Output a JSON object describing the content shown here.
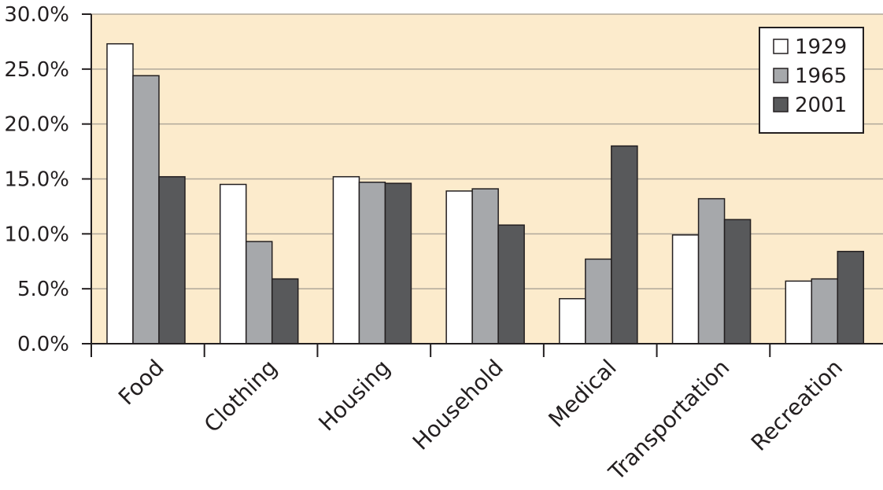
{
  "chart_data": {
    "type": "bar",
    "title": "",
    "xlabel": "",
    "ylabel": "",
    "ylim": [
      0,
      30
    ],
    "yticks": [
      "0.0%",
      "5.0%",
      "10.0%",
      "15.0%",
      "20.0%",
      "25.0%",
      "30.0%"
    ],
    "ytick_values": [
      0,
      5,
      10,
      15,
      20,
      25,
      30
    ],
    "grid": true,
    "legend_position": "top-right",
    "categories": [
      "Food",
      "Clothing",
      "Housing",
      "Household",
      "Medical",
      "Transportation",
      "Recreation"
    ],
    "series": [
      {
        "name": "1929",
        "color": "#ffffff",
        "values": [
          27.3,
          14.5,
          15.2,
          13.9,
          4.1,
          9.9,
          5.7
        ]
      },
      {
        "name": "1965",
        "color": "#a6a8ab",
        "values": [
          24.4,
          9.3,
          14.7,
          14.1,
          7.7,
          13.2,
          5.9
        ]
      },
      {
        "name": "2001",
        "color": "#58595b",
        "values": [
          15.2,
          5.9,
          14.6,
          10.8,
          18.0,
          11.3,
          8.4
        ]
      }
    ],
    "plot_background": "#fcebcc",
    "gridline_color": "#b0a89a"
  }
}
